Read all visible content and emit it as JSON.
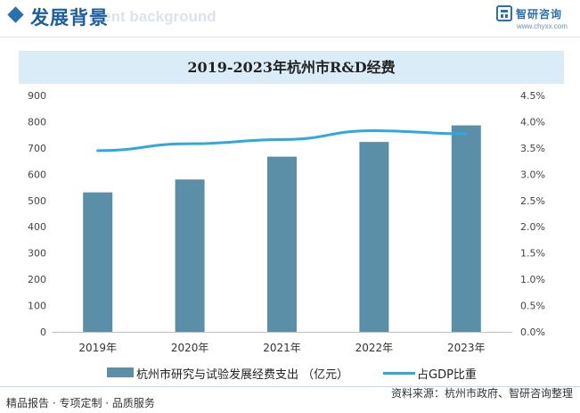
{
  "header": {
    "title": "发展背景",
    "subtitle_watermark": "ment background",
    "brand_name": "智研咨询",
    "brand_url": "www.chyxx.com"
  },
  "footer": {
    "left_text": "精品报告 · 专项定制 · 品质服务",
    "source_text": "资料来源：杭州市政府、智研咨询整理"
  },
  "colors": {
    "accent": "#1f5e9e",
    "bar": "#5b8fa8",
    "line": "#2fa8df",
    "title_band": "#d9ecf8"
  },
  "chart_data": {
    "type": "bar",
    "title": "2019-2023年杭州市R&D经费",
    "categories": [
      "2019年",
      "2020年",
      "2021年",
      "2022年",
      "2023年"
    ],
    "series": [
      {
        "name": "杭州市研究与试验发展经费支出 （亿元）",
        "type": "bar",
        "axis": "left",
        "values": [
          531,
          580,
          667,
          723,
          786
        ]
      },
      {
        "name": "占GDP比重",
        "type": "line",
        "axis": "right",
        "values": [
          3.45,
          3.58,
          3.66,
          3.83,
          3.77
        ]
      }
    ],
    "y_left": {
      "min": 0,
      "max": 900,
      "step": 100,
      "tick_labels": [
        "0",
        "100",
        "200",
        "300",
        "400",
        "500",
        "600",
        "700",
        "800",
        "900"
      ]
    },
    "y_right": {
      "min": 0,
      "max": 4.5,
      "step": 0.5,
      "tick_labels": [
        "0.0%",
        "0.5%",
        "1.0%",
        "1.5%",
        "2.0%",
        "2.5%",
        "3.0%",
        "3.5%",
        "4.0%",
        "4.5%"
      ]
    },
    "grid": false,
    "legend_position": "bottom"
  }
}
